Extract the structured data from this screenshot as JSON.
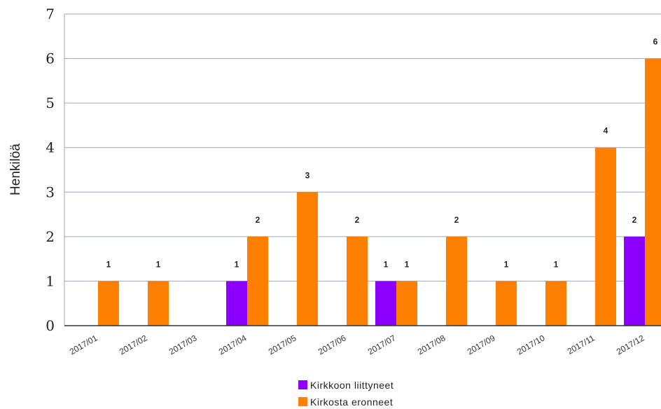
{
  "chart_data": {
    "type": "bar",
    "categories": [
      "2017/01",
      "2017/02",
      "2017/03",
      "2017/04",
      "2017/05",
      "2017/06",
      "2017/07",
      "2017/08",
      "2017/09",
      "2017/10",
      "2017/11",
      "2017/12"
    ],
    "series": [
      {
        "name": "Kirkkoon liittyneet",
        "color": "#8b00ff",
        "values": [
          0,
          0,
          0,
          1,
          0,
          0,
          1,
          0,
          0,
          0,
          0,
          2
        ]
      },
      {
        "name": "Kirkosta eronneet",
        "color": "#ff8000",
        "values": [
          1,
          1,
          0,
          2,
          3,
          2,
          1,
          2,
          1,
          1,
          4,
          6
        ]
      }
    ],
    "ylabel": "Henkilöä",
    "ylim": [
      0,
      7
    ],
    "yticks": [
      "0",
      "1",
      "2",
      "3",
      "4",
      "5",
      "6",
      "7"
    ],
    "grid": true,
    "legend_position": "bottom"
  }
}
